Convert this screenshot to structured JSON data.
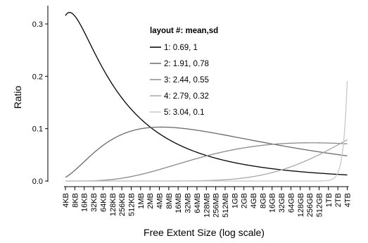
{
  "chart_data": {
    "type": "line",
    "xlabel": "Free Extent Size (log scale)",
    "ylabel": "Ratio",
    "x_scale": "log2",
    "x_tick_labels": [
      "4KB",
      "8KB",
      "16KB",
      "32KB",
      "64KB",
      "128KB",
      "256KB",
      "512KB",
      "1MB",
      "2MB",
      "4MB",
      "8MB",
      "16MB",
      "32MB",
      "64MB",
      "128MB",
      "256MB",
      "512MB",
      "1GB",
      "2GB",
      "4GB",
      "8GB",
      "16GB",
      "32GB",
      "64GB",
      "128GB",
      "256GB",
      "512GB",
      "1TB",
      "2TB",
      "4TB"
    ],
    "y_ticks": [
      "0.0",
      "0.1",
      "0.2",
      "0.3"
    ],
    "y_tick_values": [
      0.0,
      0.1,
      0.2,
      0.3
    ],
    "ylim": [
      0,
      0.335
    ],
    "grid": false,
    "legend": {
      "title": "layout #: mean,sd",
      "placement": "top-center"
    },
    "series": [
      {
        "name": "1: 0.69, 1",
        "mean": 0.69,
        "sd": 1,
        "color": "#000000",
        "peak": 0.322
      },
      {
        "name": "2: 1.91, 0.78",
        "mean": 1.91,
        "sd": 0.78,
        "color": "#6b6b6b",
        "peak": 0.103
      },
      {
        "name": "3: 2.44, 0.55",
        "mean": 2.44,
        "sd": 0.55,
        "color": "#8a8a8a",
        "peak": 0.073
      },
      {
        "name": "4: 2.79, 0.32",
        "mean": 2.79,
        "sd": 0.32,
        "color": "#a8a8a8",
        "peak": 0.079
      },
      {
        "name": "5: 3.04, 0.1",
        "mean": 3.04,
        "sd": 0.1,
        "color": "#c8c8c8",
        "peak": 0.191
      }
    ]
  }
}
